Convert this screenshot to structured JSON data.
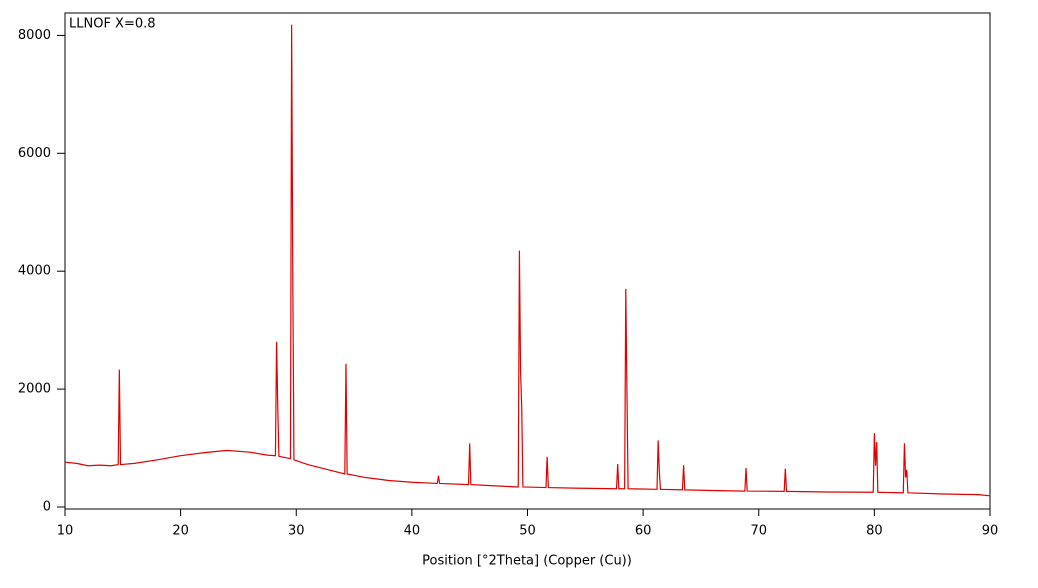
{
  "chart_data": {
    "type": "line",
    "title": "LLNOF X=0.8",
    "x_label": "Position [°2Theta] (Copper (Cu))",
    "x": [
      10,
      11,
      12,
      13,
      14,
      14.6,
      14.7,
      14.8,
      16,
      18,
      20,
      22,
      24,
      26,
      27.5,
      28.2,
      28.3,
      28.4,
      28.5,
      29.5,
      29.6,
      29.7,
      29.8,
      31,
      33,
      34.2,
      34.3,
      34.4,
      36,
      38,
      40,
      42.2,
      42.3,
      42.4,
      44.9,
      45.0,
      45.1,
      47,
      49.2,
      49.3,
      49.4,
      49.5,
      49.6,
      51.6,
      51.7,
      51.8,
      54,
      57.7,
      57.8,
      57.9,
      58.4,
      58.5,
      58.6,
      58.7,
      61.2,
      61.3,
      61.4,
      61.5,
      63.4,
      63.5,
      63.6,
      66,
      68.8,
      68.9,
      69.0,
      72.2,
      72.3,
      72.4,
      76,
      79.9,
      80.0,
      80.1,
      80.2,
      80.3,
      82.5,
      82.6,
      82.7,
      82.8,
      82.9,
      86,
      89,
      90
    ],
    "series": [
      {
        "color": "#e00000",
        "values": [
          760,
          740,
          700,
          710,
          700,
          720,
          2330,
          720,
          740,
          800,
          870,
          920,
          960,
          930,
          880,
          870,
          2800,
          1700,
          860,
          820,
          8180,
          3900,
          800,
          720,
          620,
          560,
          2430,
          560,
          500,
          450,
          420,
          400,
          530,
          400,
          380,
          1080,
          380,
          360,
          340,
          4350,
          2300,
          1700,
          340,
          330,
          850,
          330,
          320,
          310,
          730,
          310,
          310,
          3700,
          1950,
          310,
          300,
          1130,
          600,
          300,
          290,
          710,
          290,
          280,
          270,
          660,
          270,
          265,
          650,
          265,
          255,
          250,
          1250,
          700,
          1100,
          250,
          240,
          1080,
          500,
          630,
          240,
          220,
          210,
          190
        ]
      }
    ],
    "xlim": [
      10,
      90
    ],
    "xticks": [
      10,
      20,
      30,
      40,
      50,
      60,
      70,
      80,
      90
    ],
    "ylim": [
      0,
      8380
    ],
    "yticks": [
      0,
      2000,
      4000,
      6000,
      8000
    ]
  }
}
